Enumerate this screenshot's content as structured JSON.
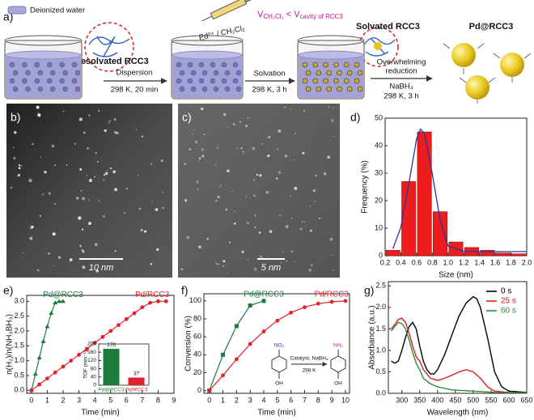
{
  "scheme": {
    "panel": "a)",
    "legend": "Deionized water",
    "desolvated": "Desolvated RCC3",
    "step1": [
      "Dispersion",
      "298 K, 20 min"
    ],
    "reagent": "Pd²⁺ / CH₂Cl₂",
    "volume_relation": [
      "V",
      "CH₂Cl₂",
      " < V",
      "cavity of RCC3"
    ],
    "step2": [
      "Solvation",
      "298 K, 3 h"
    ],
    "solvated": "Solvated RCC3",
    "step3": [
      "Overwhelming",
      "reduction",
      "NaBH₄",
      "298 K, 3 h"
    ],
    "product": "Pd@RCC3"
  },
  "images": [
    {
      "panel": "b)",
      "scale_bar": "10 nm"
    },
    {
      "panel": "c)",
      "scale_bar": "5 nm"
    }
  ],
  "chart_data": [
    {
      "type": "histogram",
      "panel": "d)",
      "xlabel": "Size (nm)",
      "ylabel": "Frequency (%)",
      "bins": [
        0.2,
        0.4,
        0.6,
        0.8,
        1.0,
        1.2,
        1.4,
        1.6,
        1.8,
        2.0
      ],
      "values": [
        2,
        27,
        45,
        16,
        5,
        3,
        2,
        1,
        0.7
      ],
      "color": "#ee1d1d",
      "curve": {
        "x": [
          0.3,
          0.4,
          0.5,
          0.6,
          0.65,
          0.7,
          0.8,
          0.9,
          1.0,
          1.2,
          1.4,
          1.6,
          1.8,
          2.0
        ],
        "values": [
          2.6,
          10.3,
          26,
          42.5,
          46,
          44.4,
          29.8,
          12.8,
          3.5,
          1.6,
          1.5,
          1.5,
          1.5,
          1.5
        ],
        "color": "#27379e"
      },
      "xlim": [
        0.2,
        2.0
      ],
      "ylim": [
        0,
        50
      ],
      "xticks": [
        0.2,
        0.4,
        0.6,
        0.8,
        {
          "value": 1,
          "label": "1.0"
        },
        1.2,
        1.4,
        1.6,
        1.8,
        {
          "value": 2,
          "label": "2.0"
        }
      ],
      "yticks": [
        0,
        10,
        20,
        30,
        40,
        50
      ]
    },
    {
      "type": "line",
      "panel": "e)",
      "xlabel": "Time (min)",
      "ylabel": "n(H₂)/n(NH₃BH₃)",
      "xlim": [
        -0.3,
        9
      ],
      "ylim": [
        -0.1,
        3.2
      ],
      "xticks": [
        0,
        1,
        2,
        3,
        4,
        5,
        6,
        7,
        8,
        9
      ],
      "yticks": [
        {
          "value": 0,
          "label": "0.0"
        },
        0.5,
        {
          "value": 1,
          "label": "1.0"
        },
        1.5,
        {
          "value": 2,
          "label": "2.0"
        },
        2.5,
        {
          "value": 3,
          "label": "3.0"
        }
      ],
      "series": [
        {
          "name": "Pd@RCC3",
          "color": "#1e7b3e",
          "marker": "triangle",
          "x": [
            0,
            0.25,
            0.5,
            0.75,
            1,
            1.25,
            1.5,
            1.75,
            2
          ],
          "values": [
            0,
            0.55,
            1.1,
            1.65,
            2.15,
            2.6,
            2.95,
            3.0,
            3.0
          ]
        },
        {
          "name": "Pd/RCC3",
          "color": "#e3222b",
          "marker": "circle",
          "x": [
            0,
            0.5,
            1,
            1.5,
            2,
            2.5,
            3,
            3.5,
            4,
            4.5,
            5,
            5.5,
            6,
            6.5,
            7,
            7.5,
            8,
            8.5
          ],
          "values": [
            0,
            0.2,
            0.4,
            0.6,
            0.8,
            1.0,
            1.2,
            1.4,
            1.6,
            1.8,
            2.0,
            2.2,
            2.4,
            2.6,
            2.8,
            2.95,
            3.0,
            3.0
          ]
        }
      ],
      "inset": {
        "type": "bar",
        "ylabel": "TOF (min⁻¹)",
        "categories": [
          "Pd@RCC3",
          "Pd/RCC3"
        ],
        "values": [
          176,
          37
        ],
        "colors": [
          "#1e7b3e",
          "#e3222b"
        ],
        "ylim": [
          0,
          200
        ],
        "yticks": [
          0,
          40,
          80,
          120,
          160,
          200
        ]
      }
    },
    {
      "type": "line",
      "panel": "f)",
      "xlabel": "Time (min)",
      "ylabel": "Conversion (%)",
      "xlim": [
        -0.4,
        10.3
      ],
      "ylim": [
        -3,
        108
      ],
      "xticks": [
        0,
        1,
        2,
        3,
        4,
        5,
        6,
        7,
        8,
        9,
        10
      ],
      "yticks": [
        0,
        20,
        40,
        60,
        80,
        100
      ],
      "series": [
        {
          "name": "Pd@RCC3",
          "color": "#1e7b3e",
          "marker": "square",
          "x": [
            0,
            1,
            2,
            3,
            4
          ],
          "values": [
            0,
            40,
            72,
            95,
            100
          ]
        },
        {
          "name": "Pd/RCC3",
          "color": "#e3222b",
          "marker": "circle",
          "x": [
            0,
            1,
            2,
            3,
            4,
            5,
            6,
            7,
            8,
            9,
            10
          ],
          "values": [
            0,
            17,
            35,
            52,
            66,
            78,
            87,
            93,
            97,
            99,
            100
          ]
        }
      ],
      "inset": {
        "reactant_group": "NO₂",
        "reactant_base": "OH",
        "conditions": [
          "Catalyst, NaBH₄",
          "298 K"
        ],
        "product_group": "NH₂",
        "product_base": "OH"
      }
    },
    {
      "type": "line",
      "panel": "g)",
      "xlabel": "Wavelength (nm)",
      "ylabel": "Absorbance (a.u.)",
      "xlim": [
        262,
        650
      ],
      "ylim": [
        0,
        2.6
      ],
      "legend": "upper right",
      "xticks": [
        300,
        350,
        400,
        450,
        500,
        550,
        600,
        650
      ],
      "yticks": [
        {
          "value": 0,
          "label": "0.0"
        },
        0.5,
        {
          "value": 1,
          "label": "1.0"
        },
        1.5,
        {
          "value": 2,
          "label": "2.0"
        },
        2.5
      ],
      "series": [
        {
          "name": "0 s",
          "color": "#000000",
          "x": [
            270,
            280,
            290,
            300,
            310,
            320,
            330,
            340,
            350,
            360,
            370,
            380,
            390,
            400,
            420,
            440,
            460,
            480,
            500,
            510,
            520,
            540,
            560,
            580,
            600,
            650
          ],
          "values": [
            0.75,
            0.7,
            0.75,
            1.0,
            1.3,
            1.55,
            1.65,
            1.5,
            1.1,
            0.75,
            0.55,
            0.45,
            0.45,
            0.55,
            0.9,
            1.35,
            1.8,
            2.1,
            2.25,
            2.2,
            2.0,
            1.3,
            0.5,
            0.15,
            0.05,
            0.02
          ]
        },
        {
          "name": "25 s",
          "color": "#e01c1c",
          "x": [
            270,
            280,
            290,
            300,
            310,
            320,
            330,
            340,
            350,
            360,
            380,
            400,
            420,
            440,
            460,
            480,
            500,
            520,
            540,
            560,
            600,
            650
          ],
          "values": [
            1.5,
            1.6,
            1.72,
            1.75,
            1.65,
            1.4,
            1.1,
            0.85,
            0.75,
            0.55,
            0.35,
            0.3,
            0.35,
            0.42,
            0.5,
            0.55,
            0.5,
            0.35,
            0.15,
            0.05,
            0.02,
            0.01
          ]
        },
        {
          "name": "60 s",
          "color": "#2a8a3c",
          "x": [
            270,
            280,
            290,
            300,
            310,
            320,
            330,
            340,
            350,
            360,
            380,
            400,
            440,
            500,
            560,
            650
          ],
          "values": [
            1.45,
            1.55,
            1.65,
            1.62,
            1.5,
            1.25,
            0.95,
            0.7,
            0.55,
            0.35,
            0.22,
            0.15,
            0.08,
            0.05,
            0.02,
            0.01
          ]
        }
      ]
    }
  ]
}
